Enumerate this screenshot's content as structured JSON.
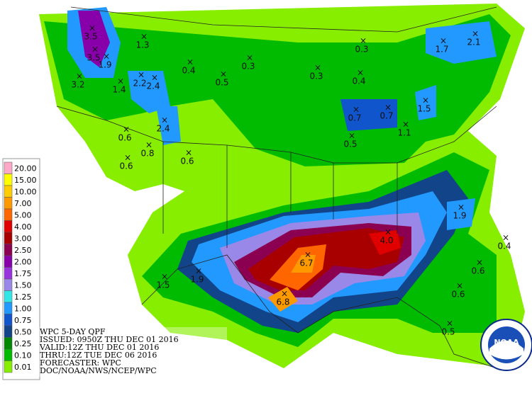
{
  "legend": [
    {
      "label": "20.00",
      "color": "#ffa8c8"
    },
    {
      "label": "15.00",
      "color": "#ffff00"
    },
    {
      "label": "10.00",
      "color": "#ffcc00"
    },
    {
      "label": "7.00",
      "color": "#ff9900"
    },
    {
      "label": "5.00",
      "color": "#ff6600"
    },
    {
      "label": "4.00",
      "color": "#e00000"
    },
    {
      "label": "3.00",
      "color": "#a80000"
    },
    {
      "label": "2.50",
      "color": "#8b0050"
    },
    {
      "label": "2.00",
      "color": "#8800aa"
    },
    {
      "label": "1.75",
      "color": "#9933dd"
    },
    {
      "label": "1.50",
      "color": "#9a88e8"
    },
    {
      "label": "1.25",
      "color": "#33e6e6"
    },
    {
      "label": "1.00",
      "color": "#2299ff"
    },
    {
      "label": "0.75",
      "color": "#1155cc"
    },
    {
      "label": "0.50",
      "color": "#114488"
    },
    {
      "label": "0.25",
      "color": "#008800"
    },
    {
      "label": "0.10",
      "color": "#00bb00"
    },
    {
      "label": "0.01",
      "color": "#88ee00"
    }
  ],
  "info": [
    "WPC 5-DAY QPF",
    "ISSUED: 0950Z THU DEC 01 2016",
    "VALID:12Z THU DEC 01 2016",
    "THRU:12Z TUE DEC 06 2016",
    "FORECASTER: WPC",
    "DOC/NOAA/NWS/NCEP/WPC"
  ],
  "logo": "NOAA",
  "points": [
    "3.5",
    "1.3",
    "3.5",
    "1.9",
    "3.2",
    "0.4",
    "0.3",
    "1.4",
    "2.2",
    "2.4",
    "0.5",
    "0.3",
    "1.7",
    "2.1",
    "0.3",
    "0.4",
    "0.7",
    "0.7",
    "1.5",
    "1.1",
    "0.5",
    "0.6",
    "2.4",
    "0.8",
    "0.6",
    "0.6",
    "1.9",
    "4.0",
    "6.7",
    "0.4",
    "0.6",
    "1.5",
    "1.9",
    "6.8",
    "0.6",
    "0.5"
  ]
}
